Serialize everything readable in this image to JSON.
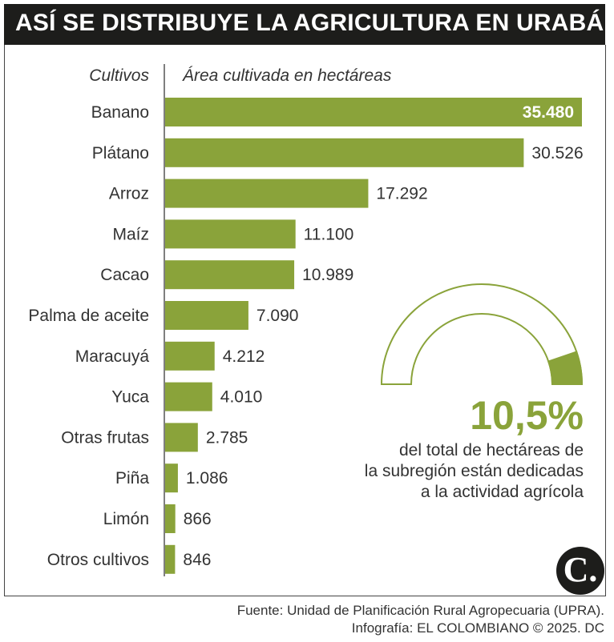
{
  "title": "ASÍ SE DISTRIBUYE LA AGRICULTURA EN URABÁ",
  "colors": {
    "bar": "#8aa33a",
    "title_bg": "#1d1d1b",
    "gauge_outline": "#8aa33a"
  },
  "chart_data": {
    "type": "bar",
    "orientation": "horizontal",
    "category_header": "Cultivos",
    "value_header": "Área cultivada en hectáreas",
    "categories": [
      "Banano",
      "Plátano",
      "Arroz",
      "Maíz",
      "Cacao",
      "Palma de aceite",
      "Maracuyá",
      "Yuca",
      "Otras frutas",
      "Piña",
      "Limón",
      "Otros cultivos"
    ],
    "values": [
      35480,
      30526,
      17292,
      11100,
      10989,
      7090,
      4212,
      4010,
      2785,
      1086,
      866,
      846
    ],
    "value_labels": [
      "35.480",
      "30.526",
      "17.292",
      "11.100",
      "10.989",
      "7.090",
      "4.212",
      "4.010",
      "2.785",
      "1.086",
      "866",
      "846"
    ],
    "xlim": [
      0,
      35480
    ]
  },
  "gauge": {
    "percent": 10.5,
    "percent_label": "10,5%",
    "description_lines": [
      "del total de hectáreas de",
      "la subregión están dedicadas",
      "a la actividad agrícola"
    ]
  },
  "logo_text": "C.",
  "source_lines": [
    "Fuente: Unidad de Planificación Rural Agropecuaria (UPRA).",
    "Infografía: EL COLOMBIANO © 2025. DC"
  ]
}
